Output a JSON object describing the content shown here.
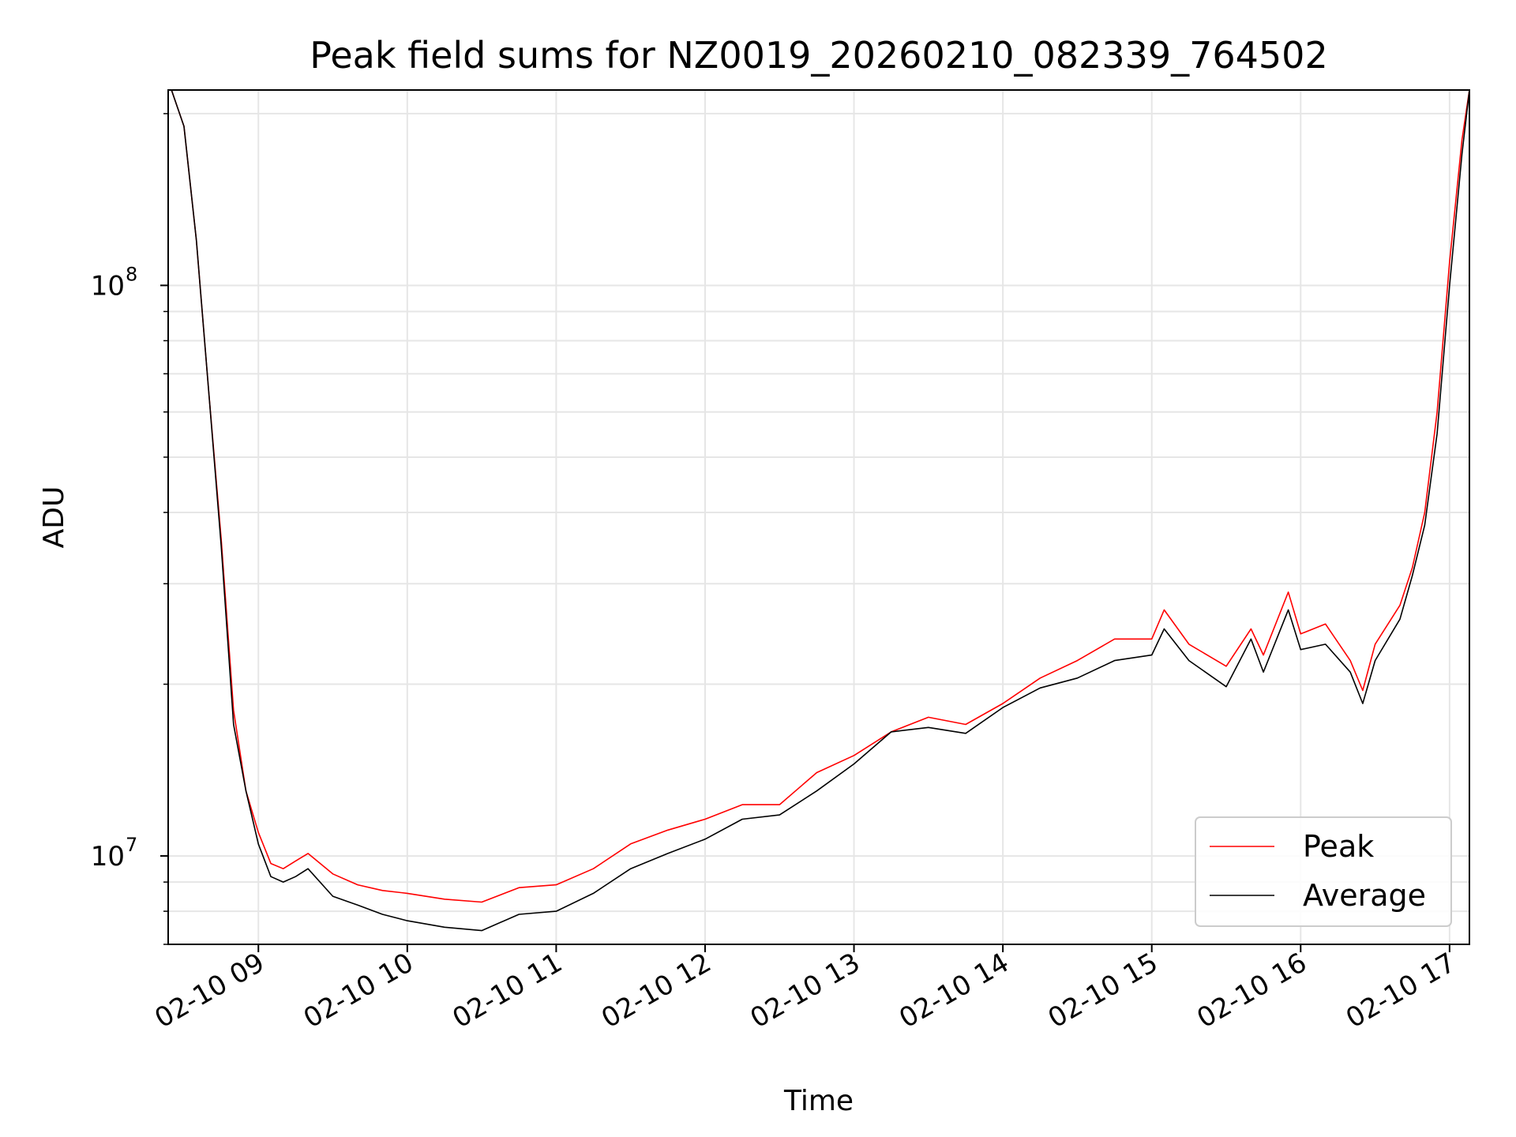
{
  "chart_data": {
    "type": "line",
    "title": "Peak field sums for NZ0019_20260210_082339_764502",
    "xlabel": "Time",
    "ylabel": "ADU",
    "y_scale": "log",
    "ylim": [
      7000000,
      220000000
    ],
    "xlim": [
      "2026-02-10 08:23:39",
      "2026-02-10 17:08:00"
    ],
    "x_tick_labels": [
      "02-10 09",
      "02-10 10",
      "02-10 11",
      "02-10 12",
      "02-10 13",
      "02-10 14",
      "02-10 15",
      "02-10 16",
      "02-10 17"
    ],
    "x_ticks": [
      "2026-02-10 09:00",
      "2026-02-10 10:00",
      "2026-02-10 11:00",
      "2026-02-10 12:00",
      "2026-02-10 13:00",
      "2026-02-10 14:00",
      "2026-02-10 15:00",
      "2026-02-10 16:00",
      "2026-02-10 17:00"
    ],
    "y_tick_labels": [
      {
        "base": "10",
        "exp": "7",
        "value": 10000000
      },
      {
        "base": "10",
        "exp": "8",
        "value": 100000000
      }
    ],
    "grid": true,
    "legend_position": "lower-right",
    "x": [
      "2026-02-10 08:25",
      "2026-02-10 08:30",
      "2026-02-10 08:35",
      "2026-02-10 08:40",
      "2026-02-10 08:45",
      "2026-02-10 08:50",
      "2026-02-10 08:55",
      "2026-02-10 09:00",
      "2026-02-10 09:05",
      "2026-02-10 09:10",
      "2026-02-10 09:15",
      "2026-02-10 09:20",
      "2026-02-10 09:30",
      "2026-02-10 09:40",
      "2026-02-10 09:50",
      "2026-02-10 10:00",
      "2026-02-10 10:15",
      "2026-02-10 10:30",
      "2026-02-10 10:45",
      "2026-02-10 11:00",
      "2026-02-10 11:15",
      "2026-02-10 11:30",
      "2026-02-10 11:45",
      "2026-02-10 12:00",
      "2026-02-10 12:15",
      "2026-02-10 12:30",
      "2026-02-10 12:45",
      "2026-02-10 13:00",
      "2026-02-10 13:15",
      "2026-02-10 13:30",
      "2026-02-10 13:45",
      "2026-02-10 14:00",
      "2026-02-10 14:15",
      "2026-02-10 14:30",
      "2026-02-10 14:45",
      "2026-02-10 15:00",
      "2026-02-10 15:05",
      "2026-02-10 15:15",
      "2026-02-10 15:30",
      "2026-02-10 15:40",
      "2026-02-10 15:45",
      "2026-02-10 15:55",
      "2026-02-10 16:00",
      "2026-02-10 16:10",
      "2026-02-10 16:20",
      "2026-02-10 16:25",
      "2026-02-10 16:30",
      "2026-02-10 16:40",
      "2026-02-10 16:45",
      "2026-02-10 16:50",
      "2026-02-10 16:55",
      "2026-02-10 17:00",
      "2026-02-10 17:05",
      "2026-02-10 17:08"
    ],
    "series": [
      {
        "name": "Peak",
        "color": "#ff0000",
        "values": [
          220000000,
          190000000,
          120000000,
          65000000,
          36000000,
          18000000,
          13000000,
          11000000,
          9700000,
          9500000,
          9800000,
          10100000,
          9300000,
          8900000,
          8700000,
          8600000,
          8400000,
          8300000,
          8800000,
          8900000,
          9500000,
          10500000,
          11100000,
          11600000,
          12300000,
          12300000,
          14000000,
          15000000,
          16500000,
          17500000,
          17000000,
          18500000,
          20500000,
          22000000,
          24000000,
          24000000,
          27000000,
          23500000,
          21500000,
          25000000,
          22500000,
          29000000,
          24500000,
          25500000,
          22000000,
          19500000,
          23500000,
          27500000,
          32000000,
          40000000,
          60000000,
          110000000,
          180000000,
          220000000
        ]
      },
      {
        "name": "Average",
        "color": "#000000",
        "values": [
          220000000,
          190000000,
          120000000,
          65000000,
          35000000,
          17000000,
          13000000,
          10500000,
          9200000,
          9000000,
          9200000,
          9500000,
          8500000,
          8200000,
          7900000,
          7700000,
          7500000,
          7400000,
          7900000,
          8000000,
          8600000,
          9500000,
          10100000,
          10700000,
          11600000,
          11800000,
          13000000,
          14500000,
          16500000,
          16800000,
          16400000,
          18200000,
          19700000,
          20500000,
          22000000,
          22500000,
          25000000,
          22000000,
          19800000,
          24000000,
          21000000,
          27000000,
          23000000,
          23500000,
          21000000,
          18500000,
          22000000,
          26000000,
          31000000,
          38000000,
          55000000,
          100000000,
          170000000,
          220000000
        ]
      }
    ]
  }
}
